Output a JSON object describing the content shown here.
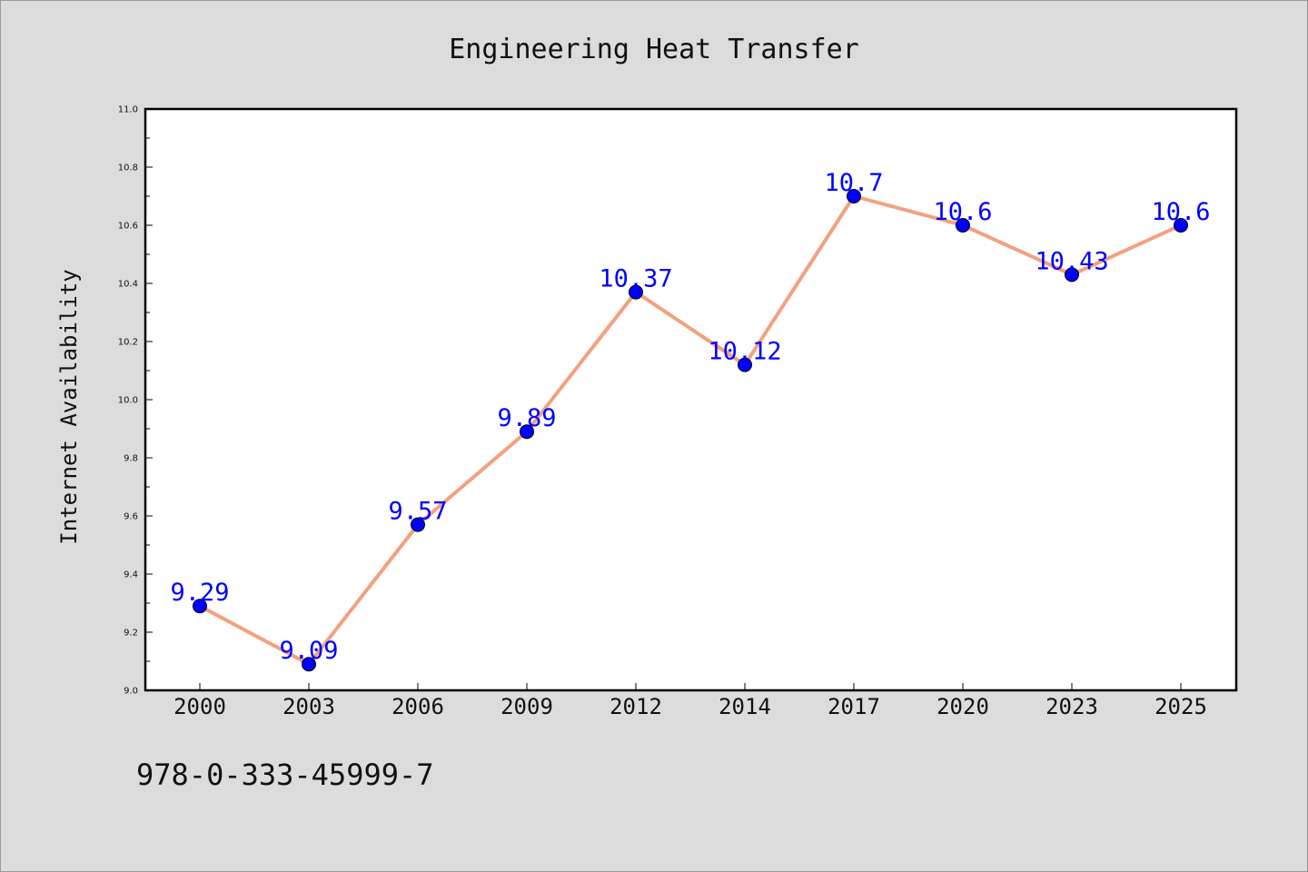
{
  "chart_data": {
    "type": "line",
    "title": "Engineering Heat Transfer",
    "xlabel": "",
    "ylabel": "Internet Availability",
    "categories": [
      "2000",
      "2003",
      "2006",
      "2009",
      "2012",
      "2014",
      "2017",
      "2020",
      "2023",
      "2025"
    ],
    "series": [
      {
        "values": [
          9.29,
          9.09,
          9.57,
          9.89,
          10.37,
          10.12,
          10.7,
          10.6,
          10.43,
          10.6
        ],
        "labels": [
          "9.29",
          "9.09",
          "9.57",
          "9.89",
          "10.37",
          "10.12",
          "10.7",
          "10.6",
          "10.43",
          "10.6"
        ],
        "line_color": "#f4a07f",
        "marker_color": "#0000ff"
      }
    ],
    "ylim": [
      9.0,
      11.0
    ],
    "yticks": [
      "9.0",
      "9.2",
      "9.4",
      "9.6",
      "9.8",
      "10.0",
      "10.2",
      "10.4",
      "10.6",
      "10.8",
      "11.0"
    ],
    "grid": false,
    "legend": "none"
  },
  "footer": {
    "text": "978-0-333-45999-7"
  },
  "colors": {
    "background": "#dcdcdc",
    "plot_background": "#ffffff",
    "axis": "#000000",
    "label": "#0000ff"
  }
}
